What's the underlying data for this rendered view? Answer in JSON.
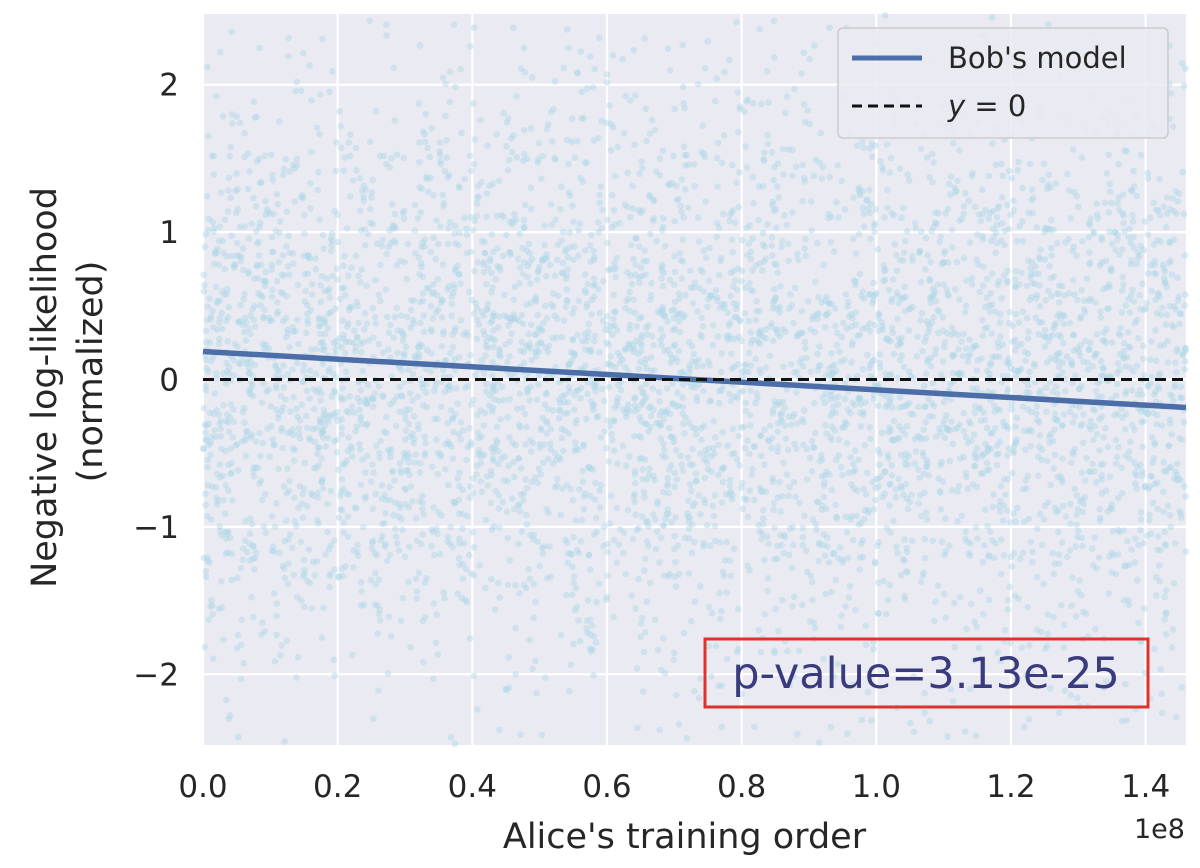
{
  "chart_data": {
    "type": "scatter",
    "xlabel": "Alice's training order",
    "ylabel_lines": [
      "Negative log-likelihood",
      "(normalized)"
    ],
    "x_offset_label": "1e8",
    "xlim": [
      0,
      1.46
    ],
    "ylim": [
      -2.48,
      2.48
    ],
    "x_scale_note": "x values in units of 1e8",
    "x_ticks": [
      {
        "value": 0.0,
        "label": "0.0"
      },
      {
        "value": 0.2,
        "label": "0.2"
      },
      {
        "value": 0.4,
        "label": "0.4"
      },
      {
        "value": 0.6,
        "label": "0.6"
      },
      {
        "value": 0.8,
        "label": "0.8"
      },
      {
        "value": 1.0,
        "label": "1.0"
      },
      {
        "value": 1.2,
        "label": "1.2"
      },
      {
        "value": 1.4,
        "label": "1.4"
      }
    ],
    "y_ticks": [
      {
        "value": 2,
        "label": "2"
      },
      {
        "value": 1,
        "label": "1"
      },
      {
        "value": 0,
        "label": "0"
      },
      {
        "value": -1,
        "label": "−1"
      },
      {
        "value": -2,
        "label": "−2"
      }
    ],
    "grid": true,
    "background": "#eaeaf2",
    "scatter": {
      "color": "#add8e6",
      "approx_point_count": 5000,
      "x_range": [
        0,
        1.46
      ],
      "y_center": 0,
      "y_spread_sd": 1.0
    },
    "series": [
      {
        "name": "Bob's model",
        "kind": "line",
        "color": "#4c6ea8",
        "x": [
          0,
          1.46
        ],
        "y": [
          0.19,
          -0.19
        ]
      },
      {
        "name": "y = 0",
        "kind": "dashed-line",
        "color": "#111111",
        "x": [
          0,
          1.46
        ],
        "y": [
          0,
          0
        ]
      }
    ],
    "legend": {
      "placement": "top-right",
      "entries": [
        {
          "label": "Bob's model",
          "style": "solid",
          "color": "#4c6ea8"
        },
        {
          "label_italic": "y",
          "label_rest": " = 0",
          "style": "dashed",
          "color": "#111111"
        }
      ]
    },
    "annotation": {
      "text": "p-value=3.13e-25",
      "placement": "bottom-right",
      "text_color": "#3a3a7e",
      "box_color": "#e0322a"
    }
  }
}
